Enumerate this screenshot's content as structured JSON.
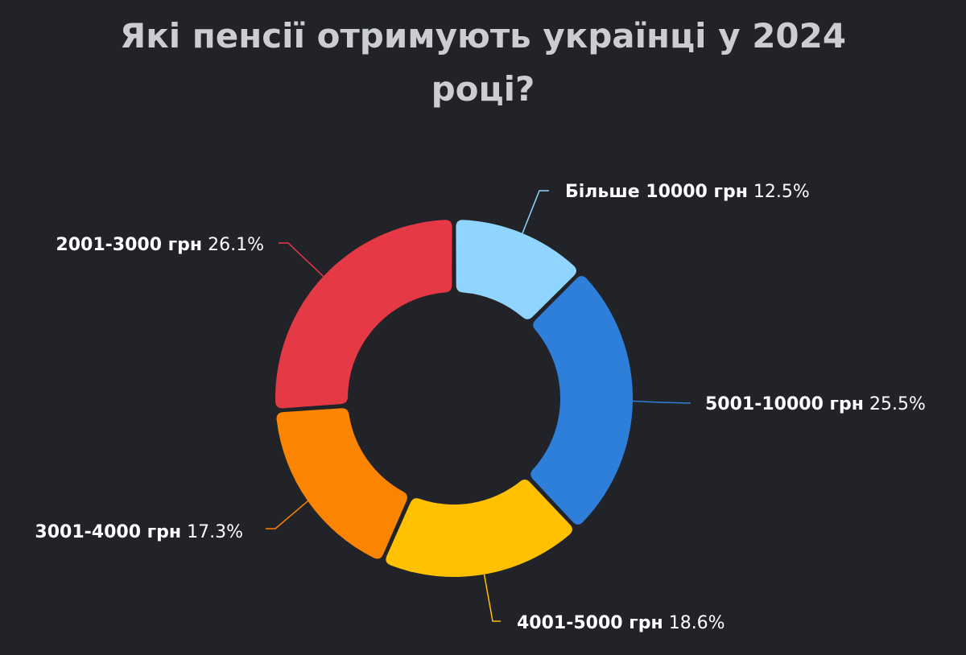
{
  "chart_data": {
    "type": "pie",
    "variant": "donut",
    "title_lines": [
      "Які пенсії отримують українці у 2024",
      "році?"
    ],
    "legend": "none",
    "background": "#212328",
    "slices": [
      {
        "label": "Більше 10000 грн",
        "value": 12.5,
        "value_text": "12.5%",
        "color": "#8fd5ff"
      },
      {
        "label": "5001-10000 грн",
        "value": 25.5,
        "value_text": "25.5%",
        "color": "#2e7fd9"
      },
      {
        "label": "4001-5000 грн",
        "value": 18.6,
        "value_text": "18.6%",
        "color": "#ffc000"
      },
      {
        "label": "3001-4000 грн",
        "value": 17.3,
        "value_text": "17.3%",
        "color": "#fb8500"
      },
      {
        "label": "2001-3000 грн",
        "value": 26.1,
        "value_text": "26.1%",
        "color": "#e63946"
      }
    ]
  }
}
